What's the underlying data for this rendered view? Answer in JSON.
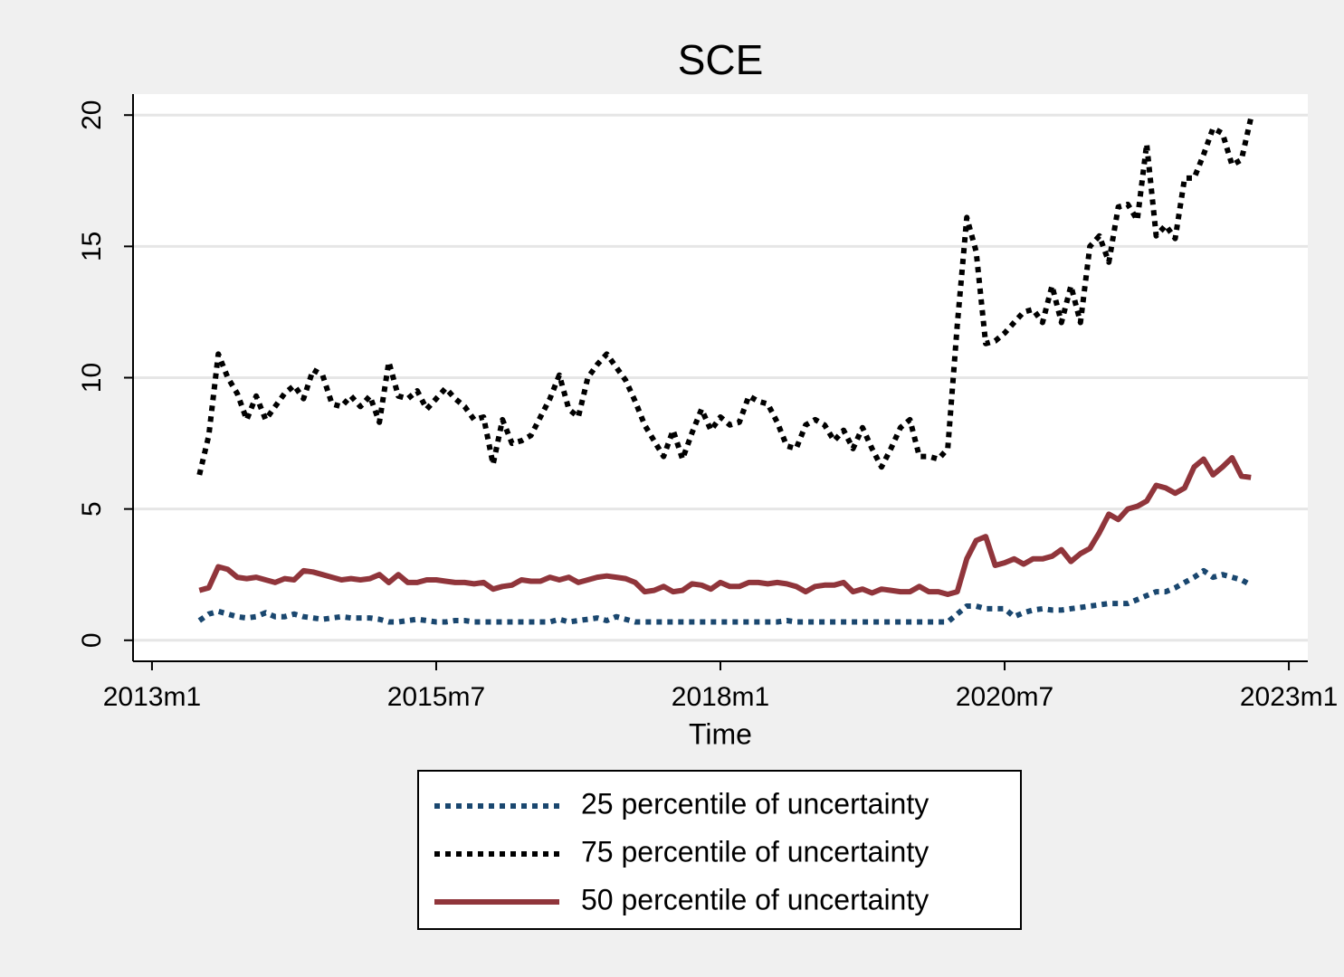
{
  "chart_data": {
    "type": "line",
    "title": "SCE",
    "xlabel": "Time",
    "xlim": [
      "2012m11",
      "2023m3"
    ],
    "xticks": [
      "2013m1",
      "2015m7",
      "2018m1",
      "2020m7",
      "2023m1"
    ],
    "ylim": [
      -0.8,
      20.8
    ],
    "yticks": [
      0,
      5,
      10,
      15,
      20
    ],
    "grid": true,
    "legend": "bottom",
    "x": [
      "2013m6",
      "2013m7",
      "2013m8",
      "2013m9",
      "2013m10",
      "2013m11",
      "2013m12",
      "2014m1",
      "2014m2",
      "2014m3",
      "2014m4",
      "2014m5",
      "2014m6",
      "2014m7",
      "2014m8",
      "2014m9",
      "2014m10",
      "2014m11",
      "2014m12",
      "2015m1",
      "2015m2",
      "2015m3",
      "2015m4",
      "2015m5",
      "2015m6",
      "2015m7",
      "2015m8",
      "2015m9",
      "2015m10",
      "2015m11",
      "2015m12",
      "2016m1",
      "2016m2",
      "2016m3",
      "2016m4",
      "2016m5",
      "2016m6",
      "2016m7",
      "2016m8",
      "2016m9",
      "2016m10",
      "2016m11",
      "2016m12",
      "2017m1",
      "2017m2",
      "2017m3",
      "2017m4",
      "2017m5",
      "2017m6",
      "2017m7",
      "2017m8",
      "2017m9",
      "2017m10",
      "2017m11",
      "2017m12",
      "2018m1",
      "2018m2",
      "2018m3",
      "2018m4",
      "2018m5",
      "2018m6",
      "2018m7",
      "2018m8",
      "2018m9",
      "2018m10",
      "2018m11",
      "2018m12",
      "2019m1",
      "2019m2",
      "2019m3",
      "2019m4",
      "2019m5",
      "2019m6",
      "2019m7",
      "2019m8",
      "2019m9",
      "2019m10",
      "2019m11",
      "2019m12",
      "2020m1",
      "2020m2",
      "2020m3",
      "2020m4",
      "2020m5",
      "2020m6",
      "2020m7",
      "2020m8",
      "2020m9",
      "2020m10",
      "2020m11",
      "2020m12",
      "2021m1",
      "2021m2",
      "2021m3",
      "2021m4",
      "2021m5",
      "2021m6",
      "2021m7",
      "2021m8",
      "2021m9",
      "2021m10",
      "2021m11",
      "2021m12",
      "2022m1",
      "2022m2",
      "2022m3",
      "2022m4",
      "2022m5",
      "2022m6",
      "2022m7",
      "2022m8",
      "2022m9"
    ],
    "series": [
      {
        "name": "25 percentile of uncertainty",
        "color": "#1a476f",
        "style": "dotted",
        "values": [
          0.75,
          1.0,
          1.1,
          1.0,
          0.9,
          0.85,
          0.9,
          1.05,
          0.9,
          0.9,
          1.0,
          0.9,
          0.85,
          0.8,
          0.85,
          0.9,
          0.85,
          0.85,
          0.85,
          0.8,
          0.7,
          0.7,
          0.75,
          0.8,
          0.75,
          0.7,
          0.7,
          0.75,
          0.75,
          0.7,
          0.7,
          0.7,
          0.7,
          0.7,
          0.7,
          0.7,
          0.7,
          0.7,
          0.8,
          0.7,
          0.75,
          0.8,
          0.85,
          0.75,
          0.9,
          0.8,
          0.7,
          0.7,
          0.7,
          0.7,
          0.7,
          0.7,
          0.7,
          0.7,
          0.7,
          0.7,
          0.7,
          0.7,
          0.7,
          0.7,
          0.7,
          0.7,
          0.75,
          0.7,
          0.7,
          0.7,
          0.7,
          0.7,
          0.7,
          0.7,
          0.7,
          0.7,
          0.7,
          0.7,
          0.7,
          0.7,
          0.7,
          0.7,
          0.7,
          0.7,
          1.0,
          1.3,
          1.3,
          1.2,
          1.2,
          1.2,
          0.9,
          1.05,
          1.15,
          1.2,
          1.15,
          1.15,
          1.2,
          1.25,
          1.3,
          1.35,
          1.4,
          1.4,
          1.4,
          1.55,
          1.7,
          1.85,
          1.85,
          2.0,
          2.2,
          2.4,
          2.65,
          2.4,
          2.5,
          2.4,
          2.3,
          2.1
        ]
      },
      {
        "name": "75 percentile of uncertainty",
        "color": "#000000",
        "style": "dotted",
        "values": [
          6.3,
          7.8,
          10.9,
          10,
          9.4,
          8.4,
          9.3,
          8.4,
          8.9,
          9.4,
          9.7,
          9.2,
          10.3,
          10.1,
          9,
          8.9,
          9.3,
          8.9,
          9.3,
          8.3,
          10.6,
          9.3,
          9.2,
          9.5,
          8.8,
          9.2,
          9.6,
          9.2,
          8.9,
          8.4,
          8.5,
          6.7,
          8.4,
          7.5,
          7.6,
          7.8,
          8.5,
          9.2,
          10.1,
          8.8,
          8.5,
          10,
          10.5,
          10.9,
          10.4,
          9.9,
          9.1,
          8.2,
          7.6,
          7,
          8,
          6.9,
          7.9,
          8.8,
          8,
          8.5,
          8.2,
          8.3,
          9.3,
          9.1,
          9,
          8.3,
          7.4,
          7.3,
          8.2,
          8.4,
          8.2,
          7.6,
          8,
          7.3,
          8.1,
          7.3,
          6.6,
          7.3,
          8.1,
          8.4,
          7,
          7,
          6.9,
          7.3,
          12,
          16.1,
          14.8,
          11.3,
          11.4,
          11.7,
          12.1,
          12.5,
          12.6,
          12.1,
          13.5,
          12.1,
          13.5,
          12.1,
          15,
          15.4,
          14.4,
          16.5,
          16.6,
          16,
          18.9,
          15.4,
          15.8,
          15.3,
          17.6,
          17.6,
          18.5,
          19.5,
          19.3,
          18.1,
          18.3,
          19.9
        ]
      },
      {
        "name": "50 percentile of uncertainty",
        "color": "#90353b",
        "style": "solid",
        "values": [
          1.9,
          2.0,
          2.8,
          2.7,
          2.4,
          2.35,
          2.4,
          2.3,
          2.2,
          2.35,
          2.3,
          2.65,
          2.6,
          2.5,
          2.4,
          2.3,
          2.35,
          2.3,
          2.35,
          2.5,
          2.2,
          2.5,
          2.2,
          2.2,
          2.3,
          2.3,
          2.25,
          2.2,
          2.2,
          2.15,
          2.2,
          1.95,
          2.05,
          2.1,
          2.3,
          2.25,
          2.25,
          2.4,
          2.3,
          2.4,
          2.2,
          2.3,
          2.4,
          2.45,
          2.4,
          2.35,
          2.2,
          1.85,
          1.9,
          2.05,
          1.85,
          1.9,
          2.15,
          2.1,
          1.95,
          2.2,
          2.05,
          2.05,
          2.2,
          2.2,
          2.15,
          2.2,
          2.15,
          2.05,
          1.85,
          2.05,
          2.1,
          2.1,
          2.2,
          1.85,
          1.95,
          1.8,
          1.95,
          1.9,
          1.85,
          1.85,
          2.05,
          1.85,
          1.85,
          1.75,
          1.85,
          3.1,
          3.8,
          3.95,
          2.85,
          2.95,
          3.1,
          2.9,
          3.1,
          3.1,
          3.2,
          3.45,
          3.0,
          3.3,
          3.5,
          4.1,
          4.8,
          4.6,
          5.0,
          5.1,
          5.3,
          5.9,
          5.8,
          5.6,
          5.8,
          6.6,
          6.9,
          6.3,
          6.6,
          6.95,
          6.25,
          6.2
        ]
      }
    ]
  }
}
